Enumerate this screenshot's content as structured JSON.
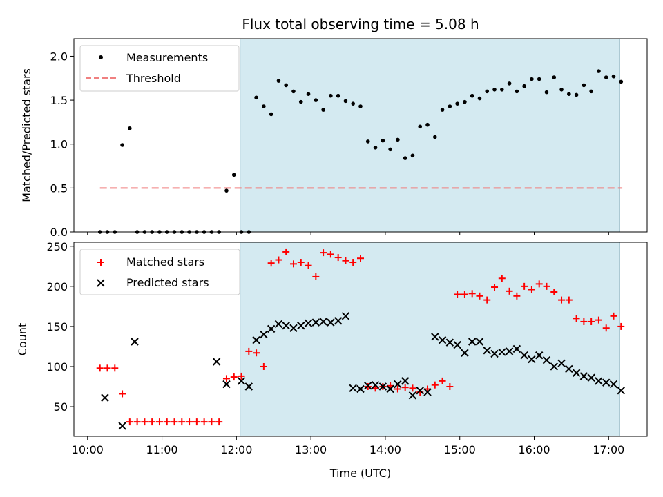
{
  "chart_data": [
    {
      "type": "scatter",
      "title": "Flux total observing time = 5.08 h",
      "xlabel": "",
      "ylabel": "Matched/Predicted stars",
      "xlim": [
        "09:49",
        "17:31"
      ],
      "ylim": [
        0,
        2.2
      ],
      "yticks": [
        "0.0",
        "0.5",
        "1.0",
        "1.5",
        "2.0"
      ],
      "shaded_span": [
        "12:03",
        "17:09"
      ],
      "shade_color": "#d4eaf1",
      "threshold": {
        "value": 0.5,
        "x_range": [
          "10:10",
          "17:11"
        ],
        "color": "#f08080"
      },
      "legend": {
        "position": "upper left",
        "entries": [
          "Measurements",
          "Threshold"
        ]
      },
      "series": [
        {
          "name": "Measurements",
          "marker": "dot",
          "color": "#000000",
          "x": [
            "10:10",
            "10:16",
            "10:22",
            "10:28",
            "10:34",
            "10:40",
            "10:46",
            "10:52",
            "10:58",
            "11:04",
            "11:10",
            "11:16",
            "11:22",
            "11:28",
            "11:34",
            "11:40",
            "11:46",
            "11:52",
            "11:58",
            "12:04",
            "12:10",
            "12:16",
            "12:22",
            "12:28",
            "12:34",
            "12:40",
            "12:46",
            "12:52",
            "12:58",
            "13:04",
            "13:10",
            "13:16",
            "13:22",
            "13:28",
            "13:34",
            "13:40",
            "13:46",
            "13:52",
            "13:58",
            "14:04",
            "14:10",
            "14:16",
            "14:22",
            "14:28",
            "14:34",
            "14:40",
            "14:46",
            "14:52",
            "14:58",
            "15:04",
            "15:10",
            "15:16",
            "15:22",
            "15:28",
            "15:34",
            "15:40",
            "15:46",
            "15:52",
            "15:58",
            "16:04",
            "16:10",
            "16:16",
            "16:22",
            "16:28",
            "16:34",
            "16:40",
            "16:46",
            "16:52",
            "16:58",
            "17:04",
            "17:10"
          ],
          "values": [
            0,
            0,
            0,
            0.99,
            1.18,
            0,
            0,
            0,
            0,
            0,
            0,
            0,
            0,
            0,
            0,
            0,
            0,
            0.47,
            0.65,
            0,
            0,
            1.53,
            1.43,
            1.34,
            1.72,
            1.67,
            1.6,
            1.48,
            1.57,
            1.5,
            1.39,
            1.55,
            1.55,
            1.49,
            1.46,
            1.43,
            1.03,
            0.96,
            1.04,
            0.94,
            1.05,
            0.84,
            0.87,
            1.2,
            1.22,
            1.08,
            1.39,
            1.43,
            1.46,
            1.48,
            1.55,
            1.52,
            1.6,
            1.62,
            1.62,
            1.69,
            1.6,
            1.66,
            1.74,
            1.74,
            1.59,
            1.76,
            1.62,
            1.57,
            1.56,
            1.67,
            1.6,
            1.83,
            1.76,
            1.77,
            1.71
          ]
        }
      ]
    },
    {
      "type": "scatter",
      "title": "",
      "xlabel": "Time (UTC)",
      "ylabel": "Count",
      "xlim": [
        "09:49",
        "17:31"
      ],
      "ylim": [
        13,
        255
      ],
      "yticks": [
        "50",
        "100",
        "150",
        "200",
        "250"
      ],
      "xticks": [
        "10:00",
        "11:00",
        "12:00",
        "13:00",
        "14:00",
        "15:00",
        "16:00",
        "17:00"
      ],
      "shaded_span": [
        "12:03",
        "17:09"
      ],
      "shade_color": "#d4eaf1",
      "legend": {
        "position": "upper left",
        "entries": [
          "Matched stars",
          "Predicted stars"
        ]
      },
      "series": [
        {
          "name": "Matched stars",
          "marker": "plus",
          "color": "#ff0000",
          "x": [
            "10:10",
            "10:16",
            "10:22",
            "10:28",
            "10:34",
            "10:40",
            "10:46",
            "10:52",
            "10:58",
            "11:04",
            "11:10",
            "11:16",
            "11:22",
            "11:28",
            "11:34",
            "11:40",
            "11:46",
            "11:52",
            "11:58",
            "12:04",
            "12:10",
            "12:16",
            "12:22",
            "12:28",
            "12:34",
            "12:40",
            "12:46",
            "12:52",
            "12:58",
            "13:04",
            "13:10",
            "13:16",
            "13:22",
            "13:28",
            "13:34",
            "13:40",
            "13:46",
            "13:52",
            "13:58",
            "14:04",
            "14:10",
            "14:16",
            "14:22",
            "14:28",
            "14:34",
            "14:40",
            "14:46",
            "14:52",
            "14:58",
            "15:04",
            "15:10",
            "15:16",
            "15:22",
            "15:28",
            "15:34",
            "15:40",
            "15:46",
            "15:52",
            "15:58",
            "16:04",
            "16:10",
            "16:16",
            "16:22",
            "16:28",
            "16:34",
            "16:40",
            "16:46",
            "16:52",
            "16:58",
            "17:04",
            "17:10"
          ],
          "values": [
            98,
            98,
            98,
            66,
            31,
            31,
            31,
            31,
            31,
            31,
            31,
            31,
            31,
            31,
            31,
            31,
            31,
            85,
            87,
            88,
            119,
            117,
            100,
            229,
            233,
            243,
            228,
            230,
            226,
            212,
            242,
            240,
            236,
            232,
            230,
            235,
            75,
            73,
            75,
            76,
            72,
            74,
            73,
            68,
            72,
            77,
            82,
            75,
            190,
            190,
            191,
            188,
            183,
            199,
            210,
            194,
            188,
            200,
            196,
            203,
            200,
            193,
            183,
            183,
            160,
            156,
            156,
            158,
            148,
            163,
            150
          ]
        },
        {
          "name": "Predicted stars",
          "marker": "x",
          "color": "#000000",
          "x": [
            "10:14",
            "10:28",
            "10:38",
            "11:44",
            "11:52",
            "12:04",
            "12:10",
            "12:16",
            "12:22",
            "12:28",
            "12:34",
            "12:40",
            "12:46",
            "12:52",
            "12:58",
            "13:04",
            "13:10",
            "13:16",
            "13:22",
            "13:28",
            "13:34",
            "13:40",
            "13:46",
            "13:52",
            "13:58",
            "14:04",
            "14:10",
            "14:16",
            "14:22",
            "14:28",
            "14:34",
            "14:40",
            "14:46",
            "14:52",
            "14:58",
            "15:04",
            "15:10",
            "15:16",
            "15:22",
            "15:28",
            "15:34",
            "15:40",
            "15:46",
            "15:52",
            "15:58",
            "16:04",
            "16:10",
            "16:16",
            "16:22",
            "16:28",
            "16:34",
            "16:40",
            "16:46",
            "16:52",
            "16:58",
            "17:04",
            "17:10"
          ],
          "values": [
            61,
            26,
            131,
            106,
            78,
            82,
            75,
            133,
            140,
            147,
            153,
            151,
            148,
            151,
            154,
            155,
            156,
            155,
            157,
            163,
            73,
            72,
            76,
            77,
            75,
            72,
            78,
            82,
            64,
            70,
            68,
            137,
            133,
            130,
            127,
            117,
            131,
            131,
            120,
            116,
            118,
            119,
            122,
            114,
            109,
            114,
            108,
            100,
            104,
            97,
            92,
            88,
            86,
            82,
            80,
            78,
            70
          ]
        }
      ]
    }
  ]
}
